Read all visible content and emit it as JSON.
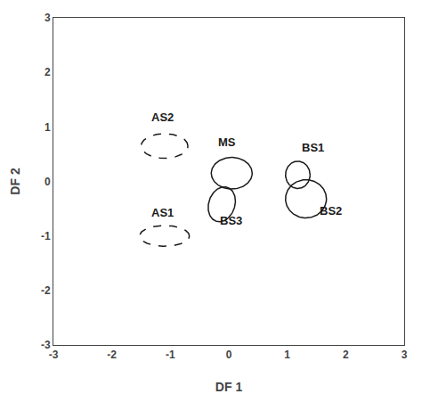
{
  "chart_data": {
    "type": "ellipse",
    "xlabel": "DF 1",
    "ylabel": "DF 2",
    "xlim": [
      -3,
      3
    ],
    "ylim": [
      -3,
      3
    ],
    "xticks": [
      -3,
      -2,
      -1,
      0,
      1,
      2,
      3
    ],
    "yticks": [
      -3,
      -2,
      -1,
      0,
      1,
      2,
      3
    ],
    "grid": false,
    "color": "#1a1a1a",
    "ellipses": [
      {
        "label": "AS2",
        "cx": -1.1,
        "cy": 0.65,
        "width": 0.8,
        "height": 0.45,
        "angle": 0,
        "label_x": -1.35,
        "label_y": 1.02,
        "line_style": "dashed"
      },
      {
        "label": "AS1",
        "cx": -1.1,
        "cy": -1.0,
        "width": 0.85,
        "height": 0.38,
        "angle": 0,
        "label_x": -1.35,
        "label_y": -0.72,
        "line_style": "dashed"
      },
      {
        "label": "MS",
        "cx": 0.05,
        "cy": 0.15,
        "width": 0.7,
        "height": 0.58,
        "angle": 0,
        "label_x": -0.22,
        "label_y": 0.56,
        "line_style": "solid"
      },
      {
        "label": "BS3",
        "cx": -0.12,
        "cy": -0.42,
        "width": 0.45,
        "height": 0.65,
        "angle": -15,
        "label_x": -0.18,
        "label_y": -0.88,
        "line_style": "solid"
      },
      {
        "label": "BS1",
        "cx": 1.18,
        "cy": 0.12,
        "width": 0.42,
        "height": 0.5,
        "angle": 0,
        "label_x": 1.22,
        "label_y": 0.46,
        "line_style": "solid"
      },
      {
        "label": "BS2",
        "cx": 1.32,
        "cy": -0.32,
        "width": 0.7,
        "height": 0.7,
        "angle": 0,
        "label_x": 1.52,
        "label_y": -0.7,
        "line_style": "solid"
      }
    ]
  }
}
